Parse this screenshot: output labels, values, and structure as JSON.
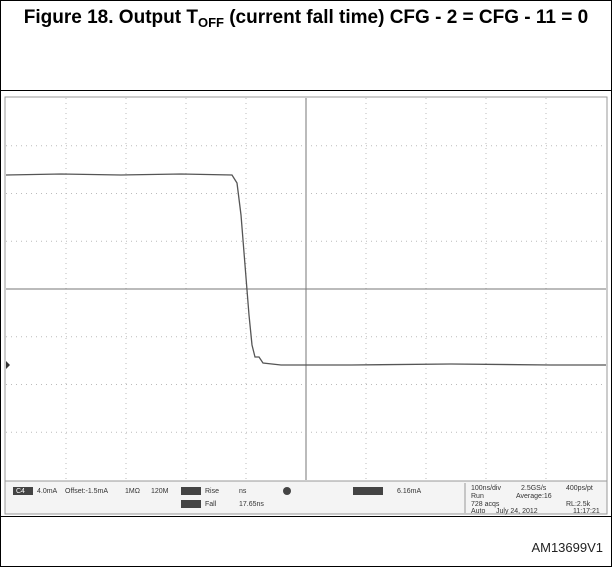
{
  "figure": {
    "title_prefix": "Figure 18. Output T",
    "title_sub": "OFF",
    "title_suffix": " (current fall time) CFG - 2 = CFG - 11 = 0",
    "scope": {
      "channel": "C4",
      "scale": "4.0mA",
      "offset": "Offset:-1.5mA",
      "impedance": "1MΩ",
      "bandwidth": "120M",
      "meas1_name": "Rise",
      "meas1_value": "ns",
      "meas2_name": "Fall",
      "meas2_value": "17.65ns",
      "trigger": "6.16mA",
      "timebase": "100ns/div",
      "sample_rate": "2.5GS/s",
      "resolution": "400ps/pt",
      "mode": "Run",
      "average": "Average:16",
      "acqs": "728 acqs",
      "record": "RL:2.5k",
      "trigger_mode": "Auto",
      "date": "July 24, 2012",
      "time": "11:17:21"
    },
    "id": "AM13699V1"
  }
}
